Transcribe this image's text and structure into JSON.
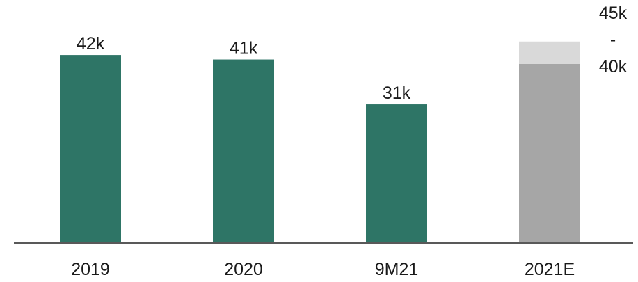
{
  "chart_data": {
    "type": "bar",
    "categories": [
      "2019",
      "2020",
      "9M21",
      "2021E"
    ],
    "values": [
      42,
      41,
      31,
      40
    ],
    "value_labels": [
      "42k",
      "41k",
      "31k",
      "40k"
    ],
    "range": {
      "category": "2021E",
      "low": 40,
      "high": 45,
      "label_high": "45k",
      "label_separator": "-",
      "label_low": "40k"
    },
    "title": "",
    "xlabel": "",
    "ylabel": "",
    "ylim": [
      0,
      50
    ],
    "grid": false,
    "legend": "none",
    "colors": {
      "actual": "#2e7566",
      "estimate": "#a6a6a6",
      "estimate_range": "#d9d9d9",
      "axis": "#595959"
    }
  }
}
